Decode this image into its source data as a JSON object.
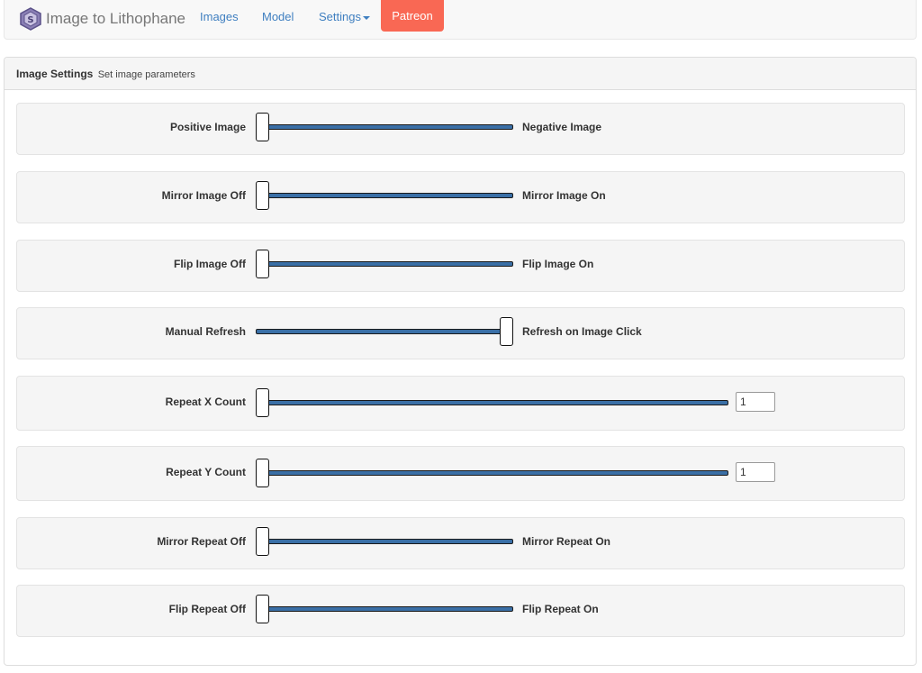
{
  "app": {
    "title": "Image to Lithophane"
  },
  "nav": {
    "images": "Images",
    "model": "Model",
    "settings": "Settings",
    "patreon": "Patreon"
  },
  "colors": {
    "patreon": "#f96854",
    "link": "#3f7fc0",
    "slider_track": "#3a6fa6"
  },
  "panel": {
    "title": "Image Settings",
    "subtitle": "Set image parameters"
  },
  "settings": [
    {
      "left": "Positive Image",
      "right": "Negative Image",
      "value": 0
    },
    {
      "left": "Mirror Image Off",
      "right": "Mirror Image On",
      "value": 0
    },
    {
      "left": "Flip Image Off",
      "right": "Flip Image On",
      "value": 0
    },
    {
      "left": "Manual Refresh",
      "right": "Refresh on Image Click",
      "value": 1
    },
    {
      "left": "Repeat X Count",
      "input_value": "1",
      "value": 1
    },
    {
      "left": "Repeat Y Count",
      "input_value": "1",
      "value": 1
    },
    {
      "left": "Mirror Repeat Off",
      "right": "Mirror Repeat On",
      "value": 0
    },
    {
      "left": "Flip Repeat Off",
      "right": "Flip Repeat On",
      "value": 0
    }
  ]
}
